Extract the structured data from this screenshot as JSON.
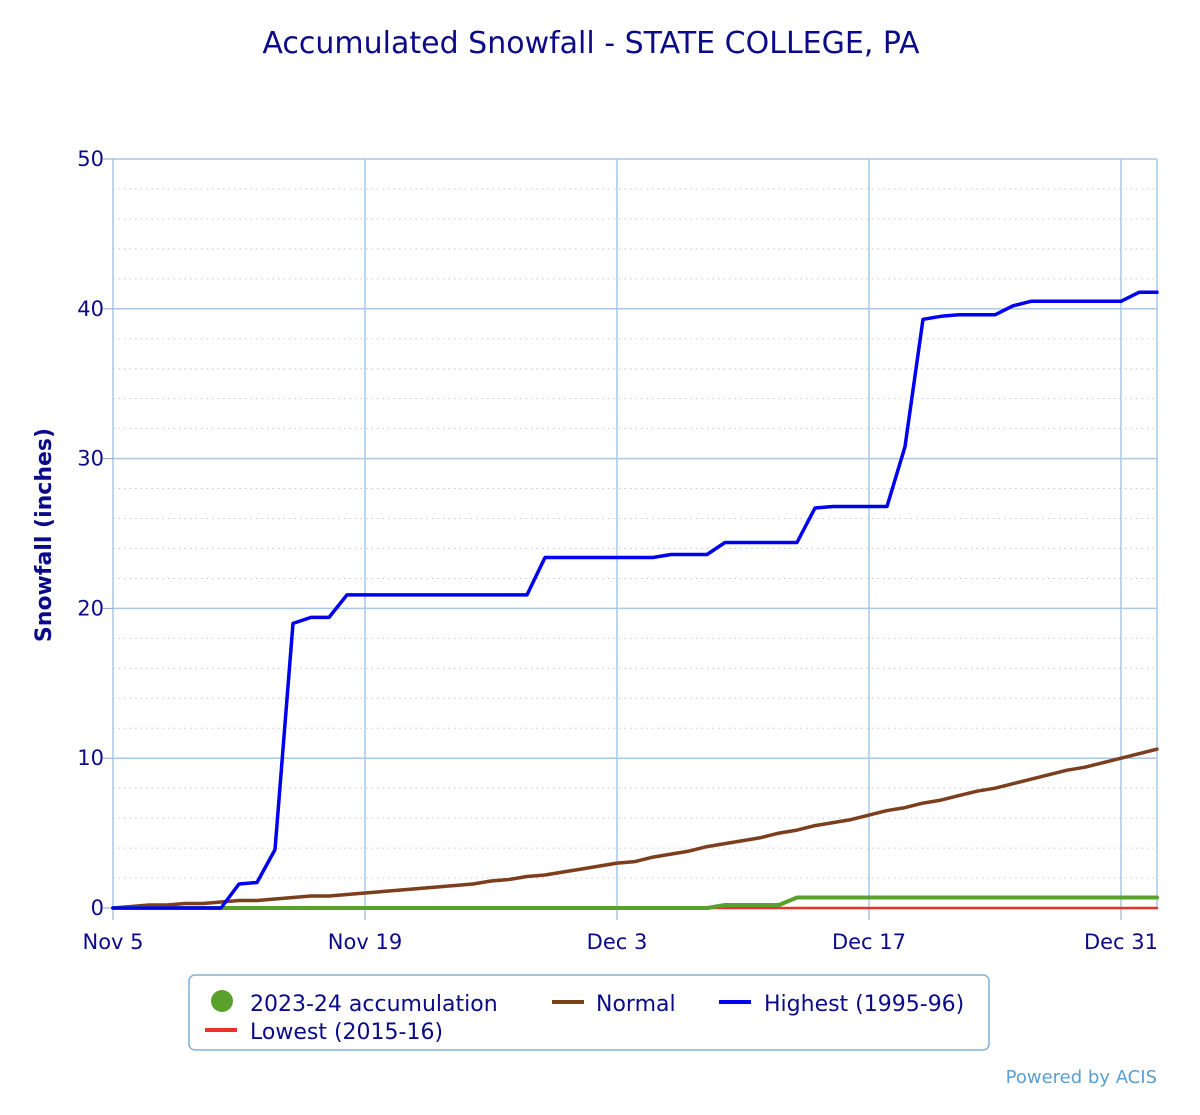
{
  "chart_data": {
    "type": "line",
    "title": "Accumulated Snowfall - STATE COLLEGE, PA",
    "ylabel": "Snowfall (inches)",
    "xlabel": "",
    "ylim": [
      0,
      50
    ],
    "y_ticks": [
      0,
      10,
      20,
      30,
      40,
      50
    ],
    "x_range": [
      "2023-11-05",
      "2024-01-02"
    ],
    "x_ticks": [
      {
        "date": "2023-11-05",
        "label": "Nov 5"
      },
      {
        "date": "2023-11-19",
        "label": "Nov 19"
      },
      {
        "date": "2023-12-03",
        "label": "Dec 3"
      },
      {
        "date": "2023-12-17",
        "label": "Dec 17"
      },
      {
        "date": "2023-12-31",
        "label": "Dec 31"
      }
    ],
    "grid": true,
    "legend_placement": "bottom",
    "series": [
      {
        "name": "2023-24 accumulation",
        "color": "#5aa02c",
        "points": [
          [
            "2023-11-05",
            0
          ],
          [
            "2023-12-08",
            0
          ],
          [
            "2023-12-09",
            0.2
          ],
          [
            "2023-12-12",
            0.2
          ],
          [
            "2023-12-13",
            0.7
          ],
          [
            "2024-01-02",
            0.7
          ]
        ]
      },
      {
        "name": "Normal",
        "color": "#7b3f1e",
        "points": [
          [
            "2023-11-05",
            0
          ],
          [
            "2023-11-07",
            0.2
          ],
          [
            "2023-11-08",
            0.2
          ],
          [
            "2023-11-09",
            0.3
          ],
          [
            "2023-11-10",
            0.3
          ],
          [
            "2023-11-11",
            0.4
          ],
          [
            "2023-11-12",
            0.5
          ],
          [
            "2023-11-13",
            0.5
          ],
          [
            "2023-11-14",
            0.6
          ],
          [
            "2023-11-15",
            0.7
          ],
          [
            "2023-11-16",
            0.8
          ],
          [
            "2023-11-17",
            0.8
          ],
          [
            "2023-11-18",
            0.9
          ],
          [
            "2023-11-19",
            1.0
          ],
          [
            "2023-11-20",
            1.1
          ],
          [
            "2023-11-21",
            1.2
          ],
          [
            "2023-11-22",
            1.3
          ],
          [
            "2023-11-23",
            1.4
          ],
          [
            "2023-11-24",
            1.5
          ],
          [
            "2023-11-25",
            1.6
          ],
          [
            "2023-11-26",
            1.8
          ],
          [
            "2023-11-27",
            1.9
          ],
          [
            "2023-11-28",
            2.1
          ],
          [
            "2023-11-29",
            2.2
          ],
          [
            "2023-11-30",
            2.4
          ],
          [
            "2023-12-01",
            2.6
          ],
          [
            "2023-12-02",
            2.8
          ],
          [
            "2023-12-03",
            3.0
          ],
          [
            "2023-12-04",
            3.1
          ],
          [
            "2023-12-05",
            3.4
          ],
          [
            "2023-12-06",
            3.6
          ],
          [
            "2023-12-07",
            3.8
          ],
          [
            "2023-12-08",
            4.1
          ],
          [
            "2023-12-09",
            4.3
          ],
          [
            "2023-12-10",
            4.5
          ],
          [
            "2023-12-11",
            4.7
          ],
          [
            "2023-12-12",
            5.0
          ],
          [
            "2023-12-13",
            5.2
          ],
          [
            "2023-12-14",
            5.5
          ],
          [
            "2023-12-15",
            5.7
          ],
          [
            "2023-12-16",
            5.9
          ],
          [
            "2023-12-17",
            6.2
          ],
          [
            "2023-12-18",
            6.5
          ],
          [
            "2023-12-19",
            6.7
          ],
          [
            "2023-12-20",
            7.0
          ],
          [
            "2023-12-21",
            7.2
          ],
          [
            "2023-12-22",
            7.5
          ],
          [
            "2023-12-23",
            7.8
          ],
          [
            "2023-12-24",
            8.0
          ],
          [
            "2023-12-25",
            8.3
          ],
          [
            "2023-12-26",
            8.6
          ],
          [
            "2023-12-27",
            8.9
          ],
          [
            "2023-12-28",
            9.2
          ],
          [
            "2023-12-29",
            9.4
          ],
          [
            "2023-12-30",
            9.7
          ],
          [
            "2023-12-31",
            10.0
          ],
          [
            "2024-01-01",
            10.3
          ],
          [
            "2024-01-02",
            10.6
          ]
        ]
      },
      {
        "name": "Highest (1995-96)",
        "color": "#0000ee",
        "points": [
          [
            "2023-11-05",
            0
          ],
          [
            "2023-11-11",
            0
          ],
          [
            "2023-11-12",
            1.6
          ],
          [
            "2023-11-13",
            1.7
          ],
          [
            "2023-11-14",
            3.9
          ],
          [
            "2023-11-15",
            19.0
          ],
          [
            "2023-11-16",
            19.4
          ],
          [
            "2023-11-17",
            19.4
          ],
          [
            "2023-11-18",
            20.9
          ],
          [
            "2023-11-28",
            20.9
          ],
          [
            "2023-11-29",
            23.4
          ],
          [
            "2023-12-05",
            23.4
          ],
          [
            "2023-12-06",
            23.6
          ],
          [
            "2023-12-08",
            23.6
          ],
          [
            "2023-12-09",
            24.4
          ],
          [
            "2023-12-13",
            24.4
          ],
          [
            "2023-12-14",
            26.7
          ],
          [
            "2023-12-15",
            26.8
          ],
          [
            "2023-12-18",
            26.8
          ],
          [
            "2023-12-19",
            30.8
          ],
          [
            "2023-12-20",
            39.3
          ],
          [
            "2023-12-21",
            39.5
          ],
          [
            "2023-12-22",
            39.6
          ],
          [
            "2023-12-24",
            39.6
          ],
          [
            "2023-12-25",
            40.2
          ],
          [
            "2023-12-26",
            40.5
          ],
          [
            "2023-12-31",
            40.5
          ],
          [
            "2024-01-01",
            41.1
          ],
          [
            "2024-01-02",
            41.1
          ]
        ]
      },
      {
        "name": "Lowest (2015-16)",
        "color": "#e8322a",
        "points": [
          [
            "2023-11-05",
            0
          ],
          [
            "2024-01-02",
            0
          ]
        ]
      }
    ]
  },
  "credit": "Powered by ACIS"
}
